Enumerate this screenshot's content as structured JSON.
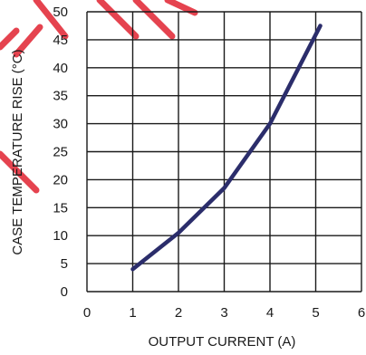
{
  "chart_data": {
    "type": "line",
    "xlabel": "OUTPUT CURRENT (A)",
    "ylabel": "CASE TEMPERATURE RISE (°C)",
    "xlim": [
      0,
      6
    ],
    "ylim": [
      0,
      50
    ],
    "grid": true,
    "x_ticks": [
      "0",
      "1",
      "2",
      "3",
      "4",
      "5",
      "6"
    ],
    "y_ticks": [
      "0",
      "5",
      "10",
      "15",
      "20",
      "25",
      "30",
      "35",
      "40",
      "45",
      "50"
    ],
    "series": [
      {
        "color": "#2b2d6b",
        "x": [
          1,
          2,
          3,
          4,
          5.1
        ],
        "y": [
          4,
          10.5,
          18.5,
          30,
          47.5
        ]
      }
    ]
  },
  "colors": {
    "grid": "#1a1a1a",
    "line": "#2b2d6b",
    "watermark": "#e32f3c"
  }
}
